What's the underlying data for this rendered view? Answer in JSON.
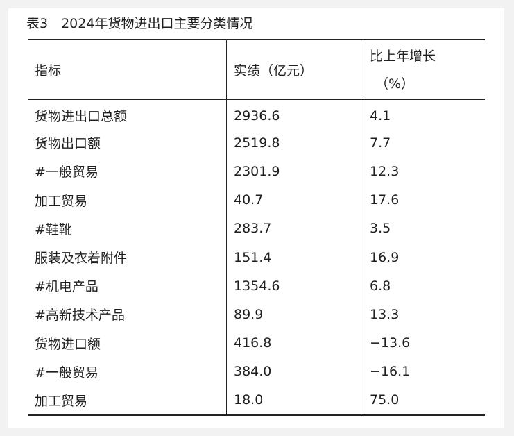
{
  "title": "表3　2024年货物进出口主要分类情况",
  "headers": {
    "col1": "指标",
    "col2": "实绩（亿元）",
    "col3_line1": "比上年增长",
    "col3_line2": "（%）"
  },
  "rows": [
    {
      "name": "货物进出口总额",
      "value": "2936.6",
      "growth": "4.1"
    },
    {
      "name": "货物出口额",
      "value": "2519.8",
      "growth": "7.7"
    },
    {
      "name": "#一般贸易",
      "value": "2301.9",
      "growth": "12.3"
    },
    {
      "name": "加工贸易",
      "value": "40.7",
      "growth": "17.6"
    },
    {
      "name": "#鞋靴",
      "value": "283.7",
      "growth": "3.5"
    },
    {
      "name": "服装及衣着附件",
      "value": "151.4",
      "growth": "16.9"
    },
    {
      "name": "#机电产品",
      "value": "1354.6",
      "growth": "6.8"
    },
    {
      "name": "#高新技术产品",
      "value": "89.9",
      "growth": "13.3"
    },
    {
      "name": "货物进口额",
      "value": "416.8",
      "growth": "−13.6"
    },
    {
      "name": "#一般贸易",
      "value": "384.0",
      "growth": "−16.1"
    },
    {
      "name": "加工贸易",
      "value": "18.0",
      "growth": "75.0"
    }
  ]
}
